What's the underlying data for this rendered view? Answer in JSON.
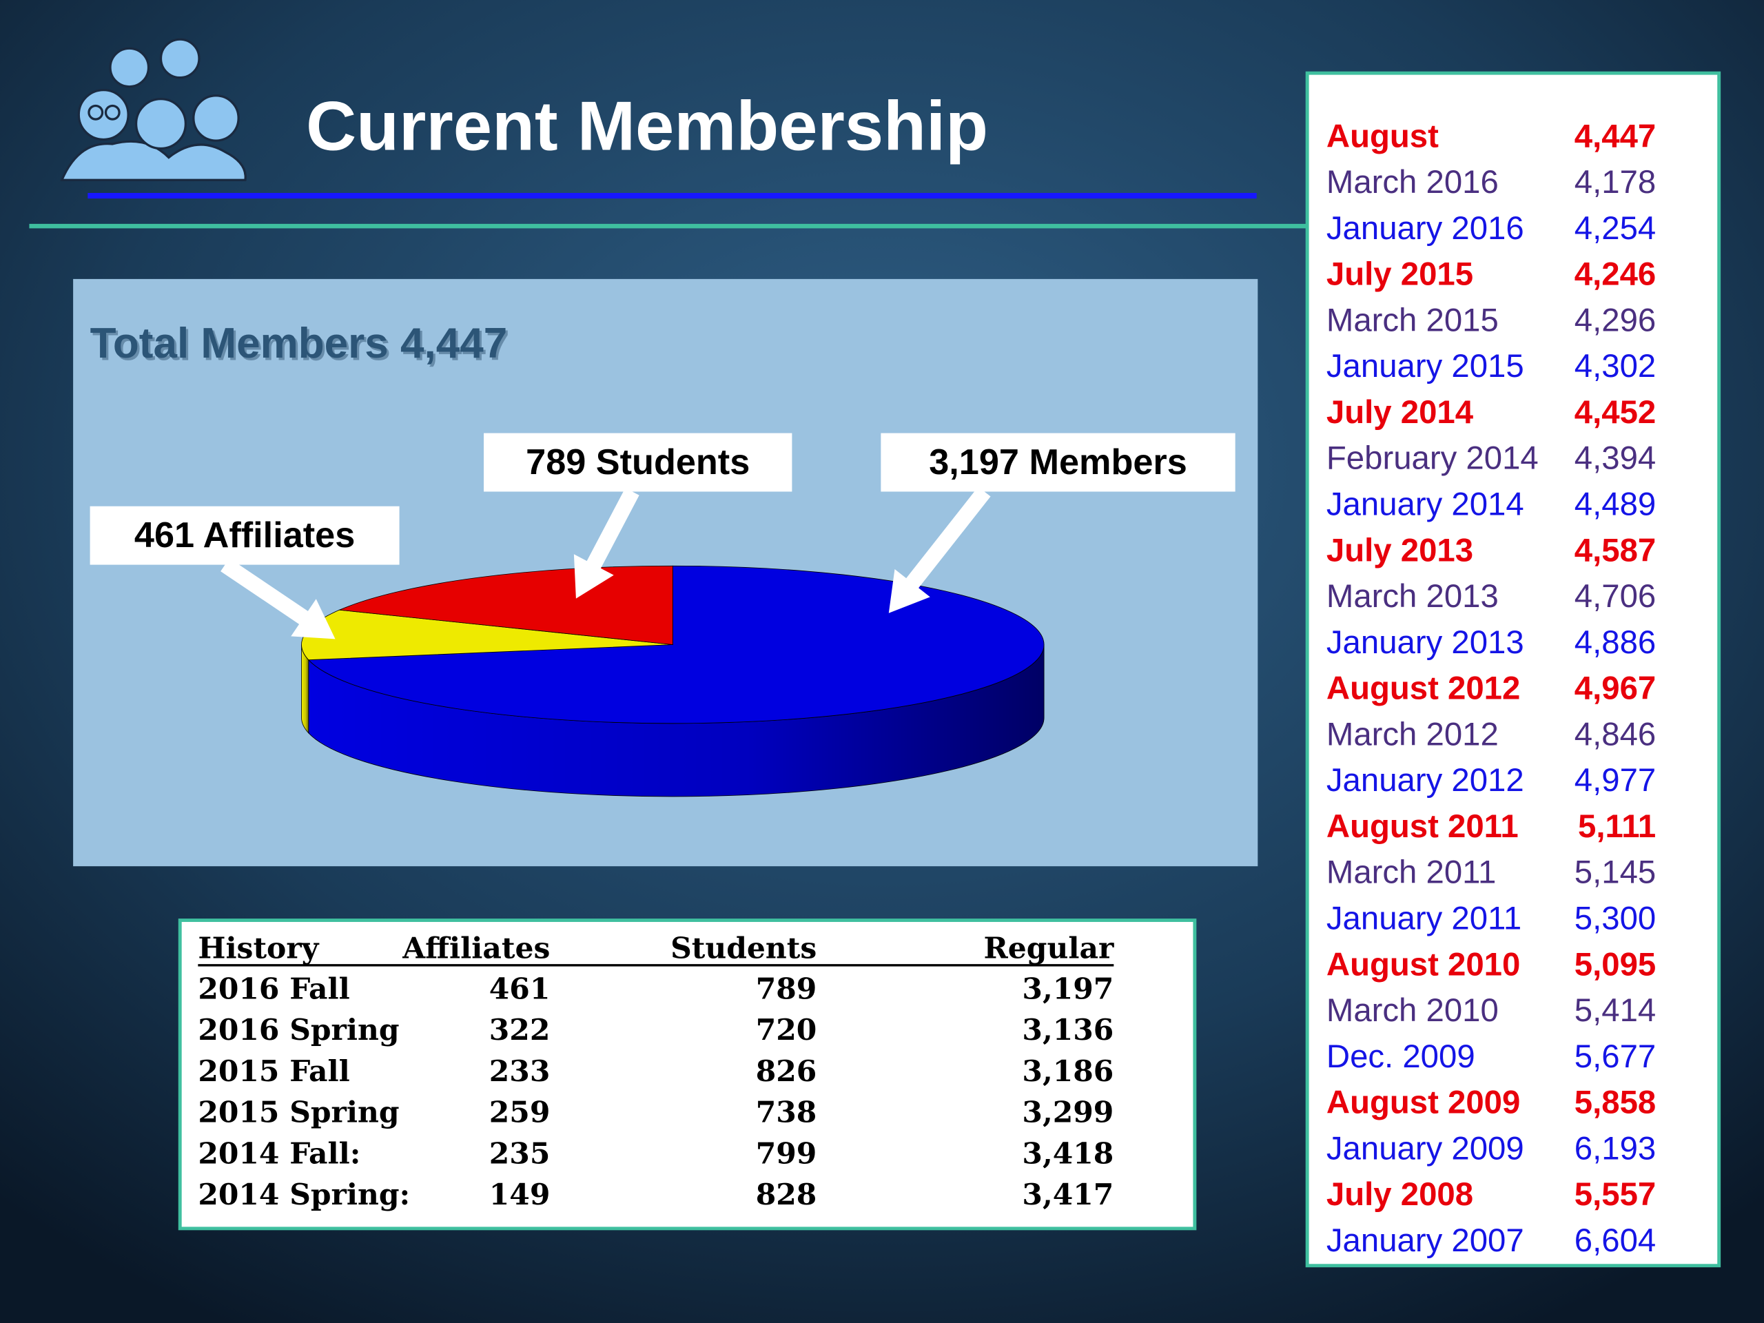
{
  "header": {
    "title": "Current Membership"
  },
  "chart_data": {
    "type": "pie",
    "title": "Total Members 4,447",
    "categories": [
      "Affiliates",
      "Students",
      "Members"
    ],
    "values": [
      461,
      789,
      3197
    ],
    "value_labels": [
      "461 Affiliates",
      "789 Students",
      "3,197 Members"
    ],
    "colors": [
      "#eeea00",
      "#e60000",
      "#0000e0"
    ]
  },
  "table": {
    "headers": [
      "History",
      "Affiliates",
      "Students",
      "Regular"
    ],
    "rows": [
      [
        "2016 Fall",
        "461",
        "789",
        "3,197"
      ],
      [
        "2016 Spring",
        "322",
        "720",
        "3,136"
      ],
      [
        "2015 Fall",
        "233",
        "826",
        "3,186"
      ],
      [
        "2015 Spring",
        "259",
        "738",
        "3,299"
      ],
      [
        "2014 Fall:",
        "235",
        "799",
        "3,418"
      ],
      [
        "2014 Spring:",
        "149",
        "828",
        "3,417"
      ]
    ]
  },
  "history_list": [
    {
      "label": "August",
      "value": "4,447",
      "color": "#e8000b",
      "bold": true
    },
    {
      "label": "March 2016",
      "value": "4,178",
      "color": "#4a2f80",
      "bold": false
    },
    {
      "label": "January 2016",
      "value": "4,254",
      "color": "#1414e6",
      "bold": false
    },
    {
      "label": "July 2015",
      "value": "4,246",
      "color": "#e8000b",
      "bold": true
    },
    {
      "label": "March 2015",
      "value": "4,296",
      "color": "#4a2f80",
      "bold": false
    },
    {
      "label": "January 2015",
      "value": "4,302",
      "color": "#1414e6",
      "bold": false
    },
    {
      "label": "July 2014",
      "value": "4,452",
      "color": "#e8000b",
      "bold": true
    },
    {
      "label": "February 2014",
      "value": "4,394",
      "color": "#4a2f80",
      "bold": false
    },
    {
      "label": "January 2014",
      "value": "4,489",
      "color": "#1414e6",
      "bold": false
    },
    {
      "label": "July 2013",
      "value": "4,587",
      "color": "#e8000b",
      "bold": true
    },
    {
      "label": "March 2013",
      "value": "4,706",
      "color": "#4a2f80",
      "bold": false
    },
    {
      "label": "January 2013",
      "value": "4,886",
      "color": "#1414e6",
      "bold": false
    },
    {
      "label": "August 2012",
      "value": "4,967",
      "color": "#e8000b",
      "bold": true
    },
    {
      "label": "March 2012",
      "value": "4,846",
      "color": "#4a2f80",
      "bold": false
    },
    {
      "label": "January 2012",
      "value": "4,977",
      "color": "#1414e6",
      "bold": false
    },
    {
      "label": "August 2011",
      "value": "5,111",
      "color": "#e8000b",
      "bold": true
    },
    {
      "label": "March 2011",
      "value": "5,145",
      "color": "#4a2f80",
      "bold": false
    },
    {
      "label": "January 2011",
      "value": "5,300",
      "color": "#1414e6",
      "bold": false
    },
    {
      "label": "August 2010",
      "value": "5,095",
      "color": "#e8000b",
      "bold": true
    },
    {
      "label": "March 2010",
      "value": "5,414",
      "color": "#4a2f80",
      "bold": false
    },
    {
      "label": "Dec. 2009",
      "value": "5,677",
      "color": "#1414e6",
      "bold": false
    },
    {
      "label": "August 2009",
      "value": "5,858",
      "color": "#e8000b",
      "bold": true
    },
    {
      "label": "January 2009",
      "value": "6,193",
      "color": "#1414e6",
      "bold": false
    },
    {
      "label": "July 2008",
      "value": "5,557",
      "color": "#e8000b",
      "bold": true
    },
    {
      "label": "January 2007",
      "value": "6,604",
      "color": "#1414e6",
      "bold": false
    }
  ]
}
